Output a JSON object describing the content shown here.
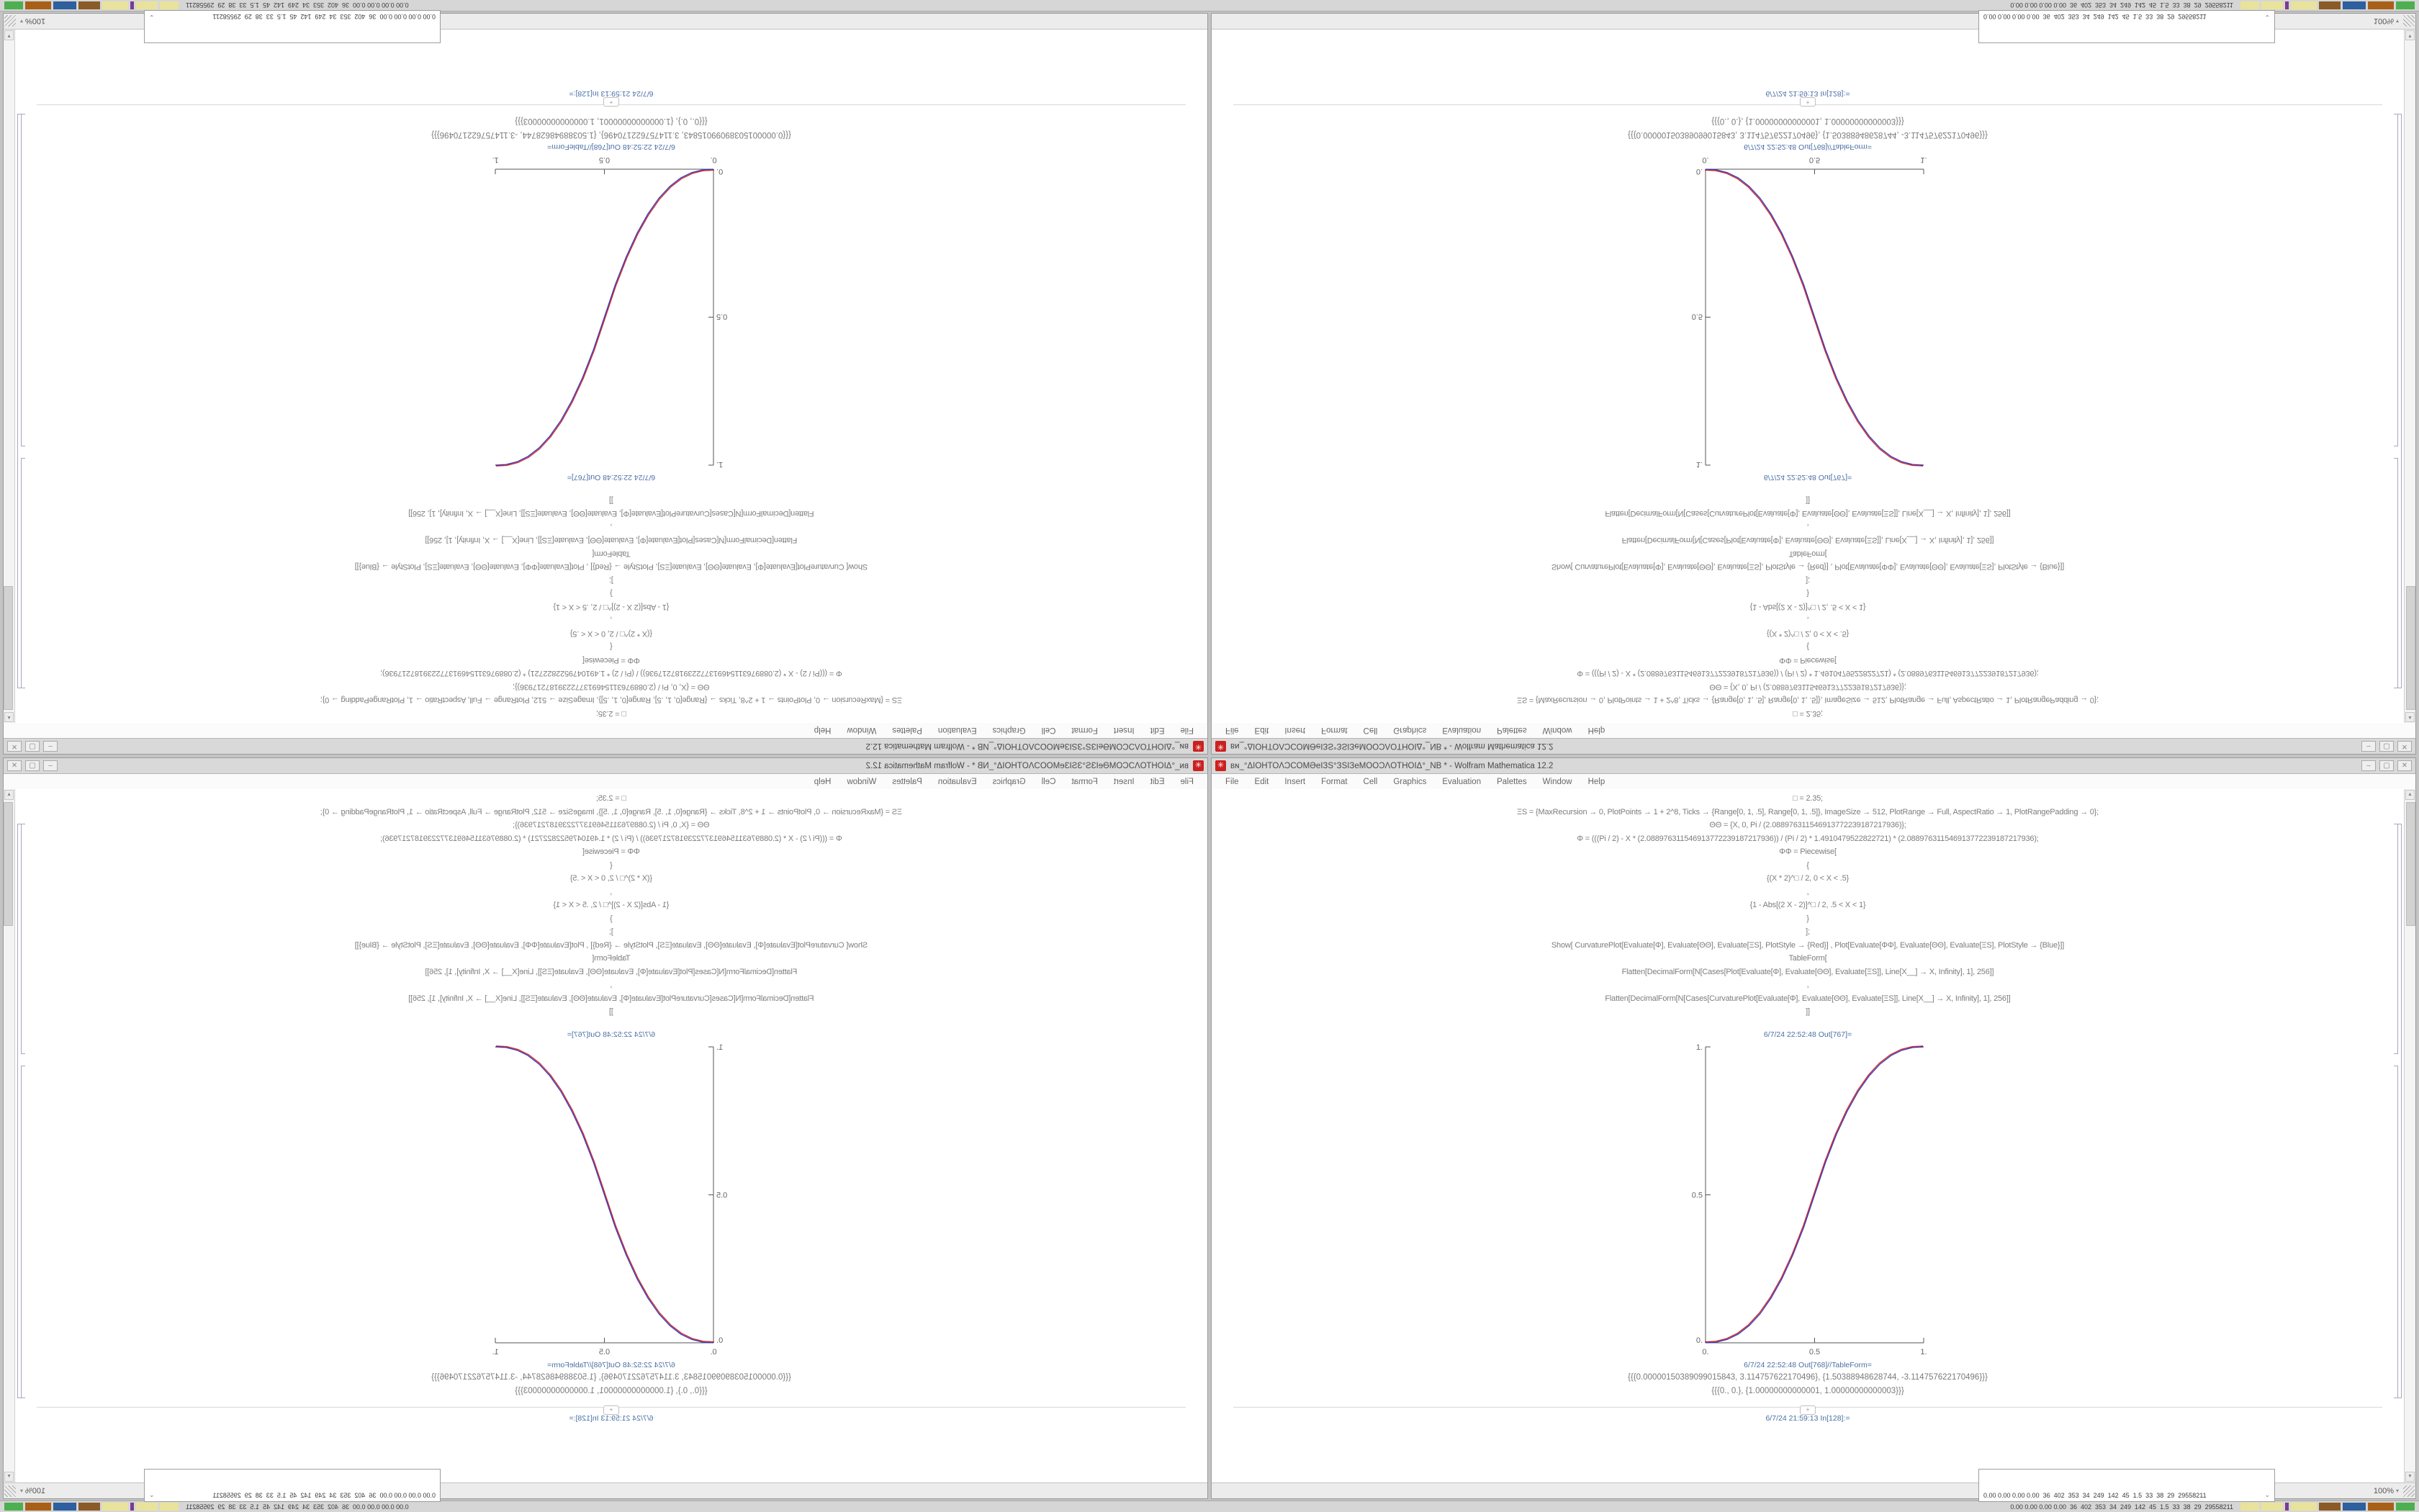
{
  "window": {
    "title": "ʙɴ_°ΔIOHTOΛϽCOMӘeIЗS°ЗSIЗeMOOϽΛOTHOIΔ°_NB * - Wolfram Mathematica 12.2",
    "controls": {
      "minimize": "–",
      "maximize": "▢",
      "close": "✕"
    },
    "menu": [
      "File",
      "Edit",
      "Insert",
      "Format",
      "Cell",
      "Graphics",
      "Evaluation",
      "Palettes",
      "Window",
      "Help"
    ],
    "code": [
      "□ = 2.35;",
      "ΞS = {MaxRecursion → 0, PlotPoints → 1 + 2^8, Ticks → {Range[0, 1, .5], Range[0, 1, .5]}, ImageSize → 512, PlotRange → Full, AspectRatio → 1, PlotRangePadding → 0};",
      "ΘΘ = {X, 0, Pi / (2.088976311546913772239187217936)};",
      "Φ = (((Pi / 2) - X * (2.088976311546913772239187217936)) / (Pi / 2) * 1.4910479522822721) * (2.088976311546913772239187217936);",
      "ΦΦ = Piecewise[",
      "{",
      "{(X * 2)^□ / 2, 0 < X < .5}",
      ",",
      "{1 - Abs[(2 X - 2)]^□ / 2, .5 < X < 1}",
      "}",
      "];",
      "Show[  CurvaturePlot[Evaluate[Φ], Evaluate[ΘΘ], Evaluate[ΞS], PlotStyle → {Red}]  ,  Plot[Evaluate[ΦΦ], Evaluate[ΘΘ], Evaluate[ΞS], PlotStyle → {Blue}]]",
      "TableForm[",
      "Flatten[DecimalForm[N[Cases[Plot[Evaluate[Φ], Evaluate[ΘΘ], Evaluate[ΞS]], Line[X__] → X, Infinity], 1], 256]]",
      ",",
      "Flatten[DecimalForm[N[Cases[CurvaturePlot[Evaluate[Φ], Evaluate[ΘΘ], Evaluate[ΞS]], Line[X__] → X, Infinity], 1], 256]]",
      "]]"
    ],
    "out_label_plot": "6/7/24 22:52:48 Out[767]=",
    "out_label_table": "6/7/24 22:52:48 Out[768]//TableForm=",
    "table_line_1": "{{{0.00000150389099015843, 3.114757622170496}, {1.50388948628744, -3.114757622170496}}}",
    "table_line_2": "{{{0., 0.}, {1.00000000000001, 1.00000000000003}}}",
    "insert_plus": "+",
    "next_in_label": "6/7/24 21:59:13 In[128]:=",
    "magnification": "100%",
    "mag_arrow": "▾",
    "scroll_up": "▲",
    "scroll_down": "▼",
    "plot": {
      "y_ticks": [
        "1.",
        "0.5",
        "0."
      ],
      "x_ticks": [
        "0.",
        "0.5",
        "1."
      ]
    }
  },
  "panel": {
    "readout": "0.00 0.00 0.00 0.00  36  402  353  34  249  142  45  1.5  33  38  29  29558211",
    "popup": {
      "readout": "0.00 0.00 0.00 0.00  36  402  353  34  249  142  45  1.5  33  38  29  29558211",
      "chevron": "⌄"
    },
    "tray_icons": [
      {
        "name": "yellow-strip-icon",
        "color": "#e9e29b",
        "w": 26
      },
      {
        "name": "yellow-strip-icon-2",
        "color": "#e9e29b",
        "w": 30
      },
      {
        "name": "purple-dot-icon",
        "color": "#7a3c8e",
        "w": 5
      },
      {
        "name": "yellow-strip-icon-3",
        "color": "#e9e29b",
        "w": 36
      },
      {
        "name": "brown-box-icon",
        "color": "#8a5a28",
        "w": 30
      },
      {
        "name": "blue-box-icon",
        "color": "#2e5f9e",
        "w": 32
      },
      {
        "name": "orange-box-icon",
        "color": "#a86018",
        "w": 36
      },
      {
        "name": "green-sparkline-icon",
        "color": "#4caf50",
        "w": 26
      }
    ]
  },
  "colors": {
    "curve_red": "#cc2222",
    "curve_blue": "#3333bb",
    "cell_label_blue": "#4a6fa5",
    "titlebar": "#d9d9d9",
    "panel": "#d6d6d6",
    "app_icon_red": "#cc1f1f"
  },
  "chart_data": {
    "type": "line",
    "title": "",
    "xlabel": "",
    "ylabel": "",
    "xlim": [
      0,
      1
    ],
    "ylim": [
      0,
      1
    ],
    "x_tick_labels": [
      "0.",
      "0.5",
      "1."
    ],
    "y_tick_labels": [
      "0.",
      "0.5",
      "1."
    ],
    "grid": false,
    "legend": "none",
    "x": [
      0,
      0.05,
      0.1,
      0.15,
      0.2,
      0.25,
      0.3,
      0.35,
      0.4,
      0.45,
      0.5,
      0.55,
      0.6,
      0.65,
      0.7,
      0.75,
      0.8,
      0.85,
      0.9,
      0.95,
      1
    ],
    "series": [
      {
        "name": "CurvaturePlot Red",
        "color": "#cc2222",
        "values": [
          0,
          0.0022,
          0.0114,
          0.0295,
          0.058,
          0.098,
          0.1505,
          0.2162,
          0.296,
          0.3902,
          0.5,
          0.6098,
          0.704,
          0.7838,
          0.8495,
          0.902,
          0.942,
          0.9705,
          0.9886,
          0.9978,
          1
        ]
      },
      {
        "name": "Plot Blue",
        "color": "#3333bb",
        "values": [
          0,
          0.0022,
          0.0114,
          0.0295,
          0.058,
          0.098,
          0.1505,
          0.2162,
          0.296,
          0.3902,
          0.5,
          0.6098,
          0.704,
          0.7838,
          0.8495,
          0.902,
          0.942,
          0.9705,
          0.9886,
          0.9978,
          1
        ]
      }
    ],
    "instances": 4
  }
}
